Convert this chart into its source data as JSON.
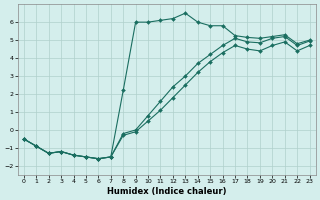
{
  "xlabel": "Humidex (Indice chaleur)",
  "xlim": [
    -0.5,
    23.5
  ],
  "ylim": [
    -2.5,
    7.0
  ],
  "yticks": [
    -2,
    -1,
    0,
    1,
    2,
    3,
    4,
    5,
    6
  ],
  "xticks": [
    0,
    1,
    2,
    3,
    4,
    5,
    6,
    7,
    8,
    9,
    10,
    11,
    12,
    13,
    14,
    15,
    16,
    17,
    18,
    19,
    20,
    21,
    22,
    23
  ],
  "bg_color": "#d4eeec",
  "line_color": "#1a6e60",
  "grid_color": "#b0d0cc",
  "curve1_x": [
    0,
    1,
    2,
    3,
    4,
    5,
    6,
    7,
    8,
    9,
    10,
    11,
    12,
    13,
    14,
    15,
    16,
    17,
    18,
    19,
    20,
    21,
    22,
    23
  ],
  "curve1_y": [
    -0.5,
    -0.9,
    -1.3,
    -1.2,
    -1.4,
    -1.5,
    -1.6,
    -1.5,
    2.2,
    6.0,
    6.0,
    6.1,
    6.2,
    6.5,
    6.0,
    5.8,
    5.8,
    5.25,
    5.15,
    5.1,
    5.2,
    5.3,
    4.8,
    5.0
  ],
  "curve2_x": [
    0,
    1,
    2,
    3,
    4,
    5,
    6,
    7,
    8,
    9,
    10,
    11,
    12,
    13,
    14,
    15,
    16,
    17,
    18,
    19,
    20,
    21,
    22,
    23
  ],
  "curve2_y": [
    -0.5,
    -0.9,
    -1.3,
    -1.2,
    -1.4,
    -1.5,
    -1.6,
    -1.5,
    -0.2,
    0.0,
    0.8,
    1.6,
    2.4,
    3.0,
    3.7,
    4.2,
    4.7,
    5.1,
    4.9,
    4.85,
    5.1,
    5.2,
    4.7,
    4.95
  ],
  "curve3_x": [
    0,
    1,
    2,
    3,
    4,
    5,
    6,
    7,
    8,
    9,
    10,
    11,
    12,
    13,
    14,
    15,
    16,
    17,
    18,
    19,
    20,
    21,
    22,
    23
  ],
  "curve3_y": [
    -0.5,
    -0.9,
    -1.3,
    -1.2,
    -1.4,
    -1.5,
    -1.6,
    -1.5,
    -0.3,
    -0.1,
    0.5,
    1.1,
    1.8,
    2.5,
    3.2,
    3.8,
    4.3,
    4.7,
    4.5,
    4.4,
    4.7,
    4.9,
    4.4,
    4.7
  ]
}
